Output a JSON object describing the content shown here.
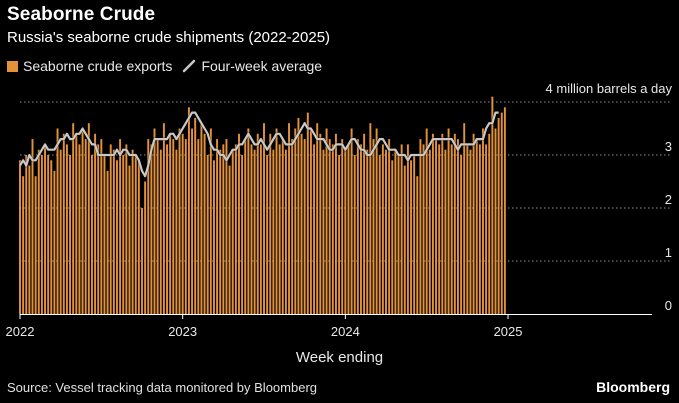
{
  "header": {
    "title": "Seaborne Crude",
    "subtitle": "Russia's seaborne crude shipments (2022-2025)"
  },
  "legend": {
    "bars_label": "Seaborne crude exports",
    "line_label": "Four-week average"
  },
  "footer": {
    "source": "Source: Vessel tracking data monitored by Bloomberg",
    "brand": "Bloomberg"
  },
  "colors": {
    "bar": "#e3913a",
    "line": "#c8c8c8",
    "grid": "#8a8a8a",
    "axis": "#ffffff",
    "background": "#000000"
  },
  "chart_data": {
    "type": "bar",
    "title": "Seaborne Crude",
    "subtitle": "Russia's seaborne crude shipments (2022-2025)",
    "xlabel": "Week ending",
    "ylabel": "",
    "unit_label": "4 million barrels a day",
    "ylim": [
      0,
      4
    ],
    "yticks": [
      0,
      1,
      2,
      3,
      4
    ],
    "ytick_labels": [
      "0",
      "1",
      "2",
      "3",
      ""
    ],
    "xlim": [
      2022.0,
      2025.885
    ],
    "xticks": [
      2022,
      2023,
      2024,
      2025
    ],
    "xtick_labels": [
      "2022",
      "2023",
      "2024",
      "2025"
    ],
    "grid": true,
    "legend_position": "top-left",
    "weeks_start": 2022.0,
    "weeks_step": 0.01923,
    "series": [
      {
        "name": "Seaborne crude exports",
        "type": "bar",
        "values": [
          2.9,
          2.6,
          3.0,
          2.8,
          3.3,
          2.6,
          3.1,
          3.0,
          3.2,
          3.0,
          2.9,
          2.7,
          3.5,
          3.1,
          3.4,
          3.2,
          3.0,
          3.6,
          3.4,
          3.2,
          3.5,
          3.3,
          3.6,
          3.0,
          3.4,
          3.2,
          3.3,
          3.0,
          2.7,
          3.2,
          3.1,
          2.9,
          3.3,
          3.0,
          3.2,
          2.8,
          3.1,
          3.0,
          2.9,
          2.0,
          2.5,
          3.3,
          3.2,
          3.5,
          3.3,
          3.1,
          3.6,
          3.2,
          3.4,
          3.3,
          3.1,
          3.5,
          3.4,
          3.3,
          3.9,
          3.5,
          3.7,
          3.3,
          3.6,
          3.4,
          3.0,
          3.5,
          2.9,
          3.3,
          3.1,
          3.2,
          3.3,
          2.8,
          3.1,
          3.2,
          3.4,
          3.0,
          3.3,
          3.5,
          3.2,
          3.1,
          3.4,
          3.2,
          3.6,
          3.0,
          3.4,
          3.1,
          3.5,
          3.2,
          3.3,
          3.1,
          3.6,
          3.3,
          3.5,
          3.7,
          3.4,
          3.3,
          3.8,
          3.5,
          3.2,
          3.6,
          3.4,
          3.1,
          3.5,
          3.3,
          3.2,
          3.4,
          3.0,
          3.3,
          3.1,
          3.2,
          3.5,
          3.0,
          3.3,
          3.2,
          3.4,
          3.1,
          3.6,
          3.3,
          3.5,
          3.0,
          3.2,
          3.1,
          3.3,
          2.9,
          3.1,
          3.0,
          3.2,
          2.8,
          3.2,
          2.9,
          3.0,
          2.6,
          3.3,
          3.2,
          3.5,
          3.1,
          3.4,
          3.3,
          3.2,
          3.4,
          3.1,
          3.5,
          3.2,
          3.4,
          3.3,
          3.0,
          3.6,
          3.2,
          3.1,
          3.4,
          3.3,
          3.2,
          3.5,
          3.2,
          3.4,
          4.1,
          3.5,
          3.7,
          3.8,
          3.9
        ]
      },
      {
        "name": "Four-week average",
        "type": "line",
        "values": [
          2.8,
          2.9,
          2.8,
          3.0,
          2.9,
          2.9,
          3.0,
          3.1,
          3.2,
          3.1,
          3.1,
          3.1,
          3.2,
          3.3,
          3.3,
          3.4,
          3.3,
          3.3,
          3.4,
          3.4,
          3.5,
          3.4,
          3.3,
          3.2,
          3.2,
          3.0,
          3.0,
          3.0,
          3.0,
          3.0,
          3.0,
          3.1,
          3.0,
          3.1,
          3.1,
          3.0,
          3.0,
          3.0,
          2.9,
          2.7,
          2.6,
          2.8,
          3.1,
          3.3,
          3.3,
          3.3,
          3.3,
          3.3,
          3.4,
          3.4,
          3.3,
          3.4,
          3.5,
          3.6,
          3.7,
          3.8,
          3.8,
          3.7,
          3.6,
          3.5,
          3.4,
          3.2,
          3.1,
          3.1,
          3.0,
          3.0,
          2.9,
          3.0,
          3.1,
          3.1,
          3.2,
          3.2,
          3.3,
          3.4,
          3.3,
          3.2,
          3.2,
          3.3,
          3.2,
          3.1,
          3.2,
          3.3,
          3.4,
          3.4,
          3.3,
          3.2,
          3.2,
          3.2,
          3.3,
          3.4,
          3.5,
          3.6,
          3.5,
          3.5,
          3.4,
          3.3,
          3.3,
          3.3,
          3.2,
          3.1,
          3.1,
          3.2,
          3.2,
          3.2,
          3.1,
          3.2,
          3.3,
          3.3,
          3.2,
          3.1,
          3.1,
          3.0,
          3.0,
          3.1,
          3.2,
          3.3,
          3.3,
          3.2,
          3.1,
          3.1,
          3.1,
          3.0,
          3.0,
          3.0,
          2.9,
          3.0,
          3.0,
          3.0,
          3.0,
          3.0,
          3.1,
          3.2,
          3.3,
          3.3,
          3.3,
          3.3,
          3.3,
          3.3,
          3.3,
          3.2,
          3.1,
          3.2,
          3.2,
          3.2,
          3.2,
          3.2,
          3.3,
          3.3,
          3.3,
          3.5,
          3.6,
          3.6,
          3.8,
          3.8
        ]
      }
    ]
  }
}
